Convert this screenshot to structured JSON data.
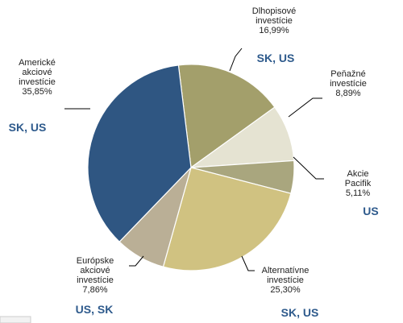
{
  "chart_data": {
    "type": "pie",
    "categories": [
      "Dlhopisové\ninvestície",
      "Peňažné\ninvestície",
      "Akcie Pacifik",
      "Alternatívne\ninvestície",
      "Európske\nakciové\ninvestície",
      "Americké\nakciové\ninvestície"
    ],
    "values": [
      16.99,
      8.89,
      5.11,
      25.3,
      7.86,
      35.85
    ],
    "value_labels": [
      "16,99%",
      "8,89%",
      "5,11%",
      "25,30%",
      "7,86%",
      "35,85%"
    ],
    "markets": [
      "SK, US",
      null,
      "US",
      "SK, US",
      "US, SK",
      "SK, US"
    ],
    "colors": [
      "#a39f6b",
      "#e5e3d2",
      "#a9a67e",
      "#d0c281",
      "#baaf96",
      "#2f5682"
    ]
  }
}
